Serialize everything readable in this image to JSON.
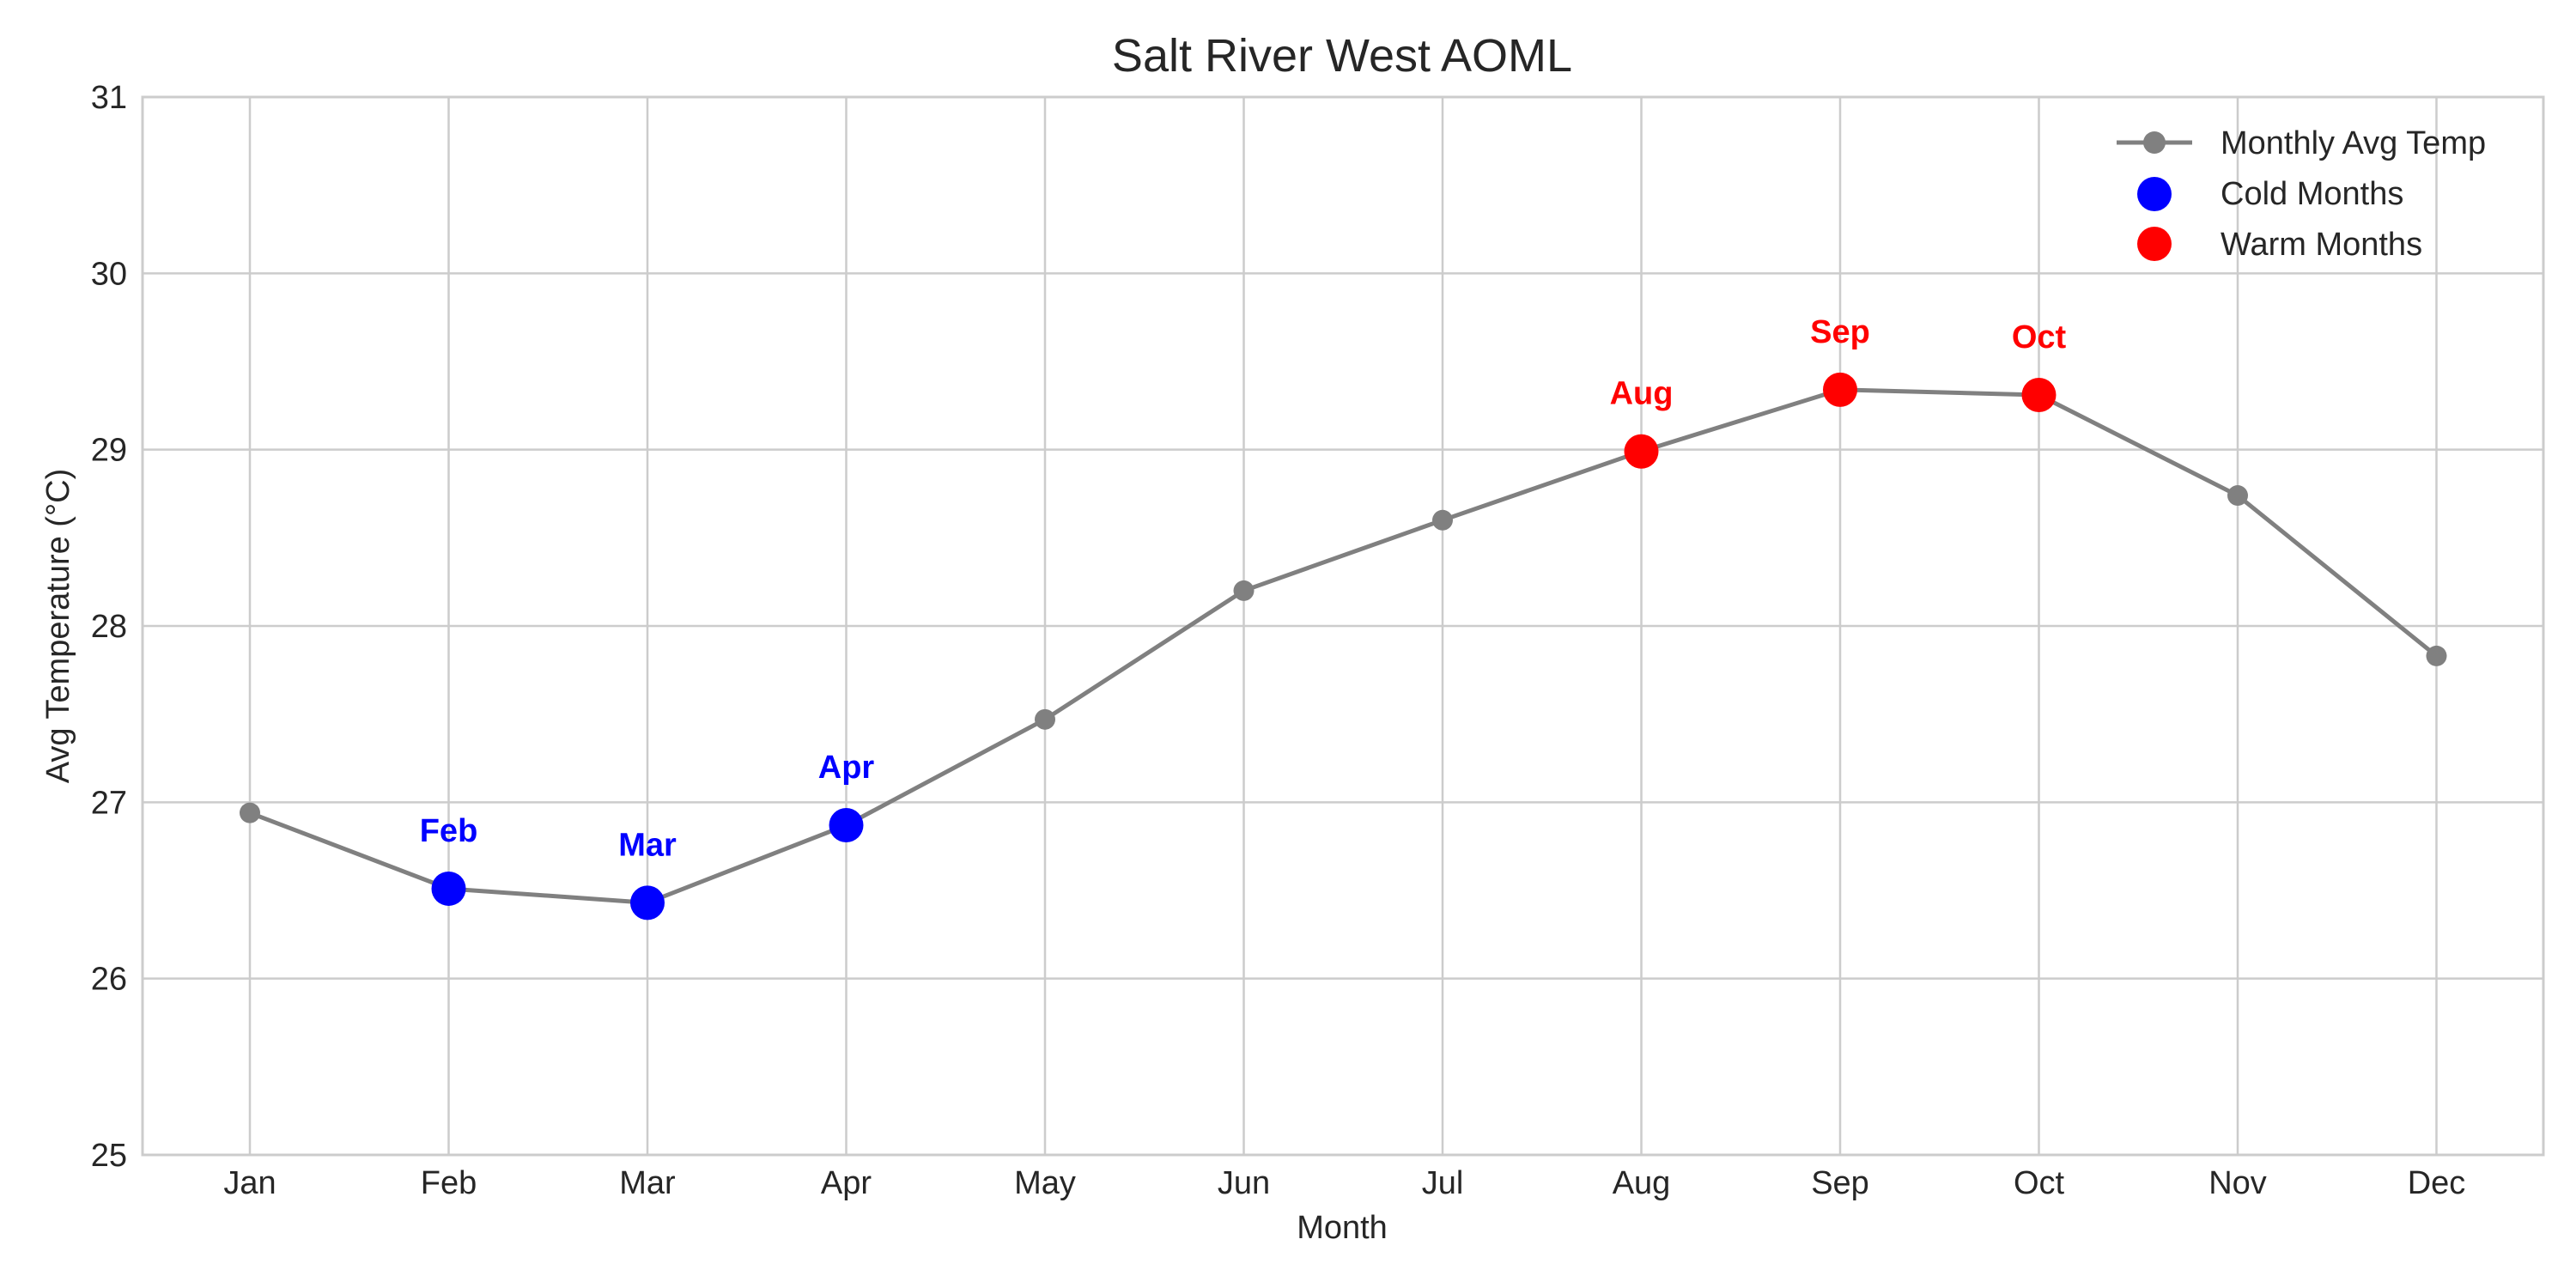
{
  "chart_data": {
    "type": "line",
    "title": "Salt River West AOML",
    "xlabel": "Month",
    "ylabel": "Avg Temperature (°C)",
    "categories": [
      "Jan",
      "Feb",
      "Mar",
      "Apr",
      "May",
      "Jun",
      "Jul",
      "Aug",
      "Sep",
      "Oct",
      "Nov",
      "Dec"
    ],
    "ylim": [
      25,
      31
    ],
    "yticks": [
      25,
      26,
      27,
      28,
      29,
      30,
      31
    ],
    "grid": true,
    "legend_position": "top-right",
    "series": [
      {
        "name": "Monthly Avg Temp",
        "values": [
          26.94,
          26.51,
          26.43,
          26.87,
          27.47,
          28.2,
          28.6,
          28.99,
          29.34,
          29.31,
          28.74,
          27.83
        ],
        "color": "#808080"
      }
    ],
    "highlights": [
      {
        "name": "Cold Months",
        "color": "#0000ff",
        "months": [
          "Feb",
          "Mar",
          "Apr"
        ]
      },
      {
        "name": "Warm Months",
        "color": "#ff0000",
        "months": [
          "Aug",
          "Sep",
          "Oct"
        ]
      }
    ]
  }
}
